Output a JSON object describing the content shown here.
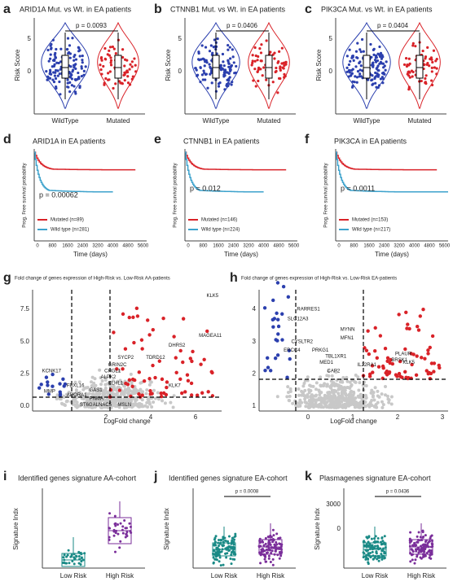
{
  "violins": [
    {
      "label": "a",
      "title": "ARID1A Mut. vs Wt. in EA patients",
      "pvalue": "p = 0.0093"
    },
    {
      "label": "b",
      "title": "CTNNB1 Mut. vs Wt. in EA patients",
      "pvalue": "p = 0.0406"
    },
    {
      "label": "c",
      "title": "PIK3CA Mut. vs Wt. in EA patients",
      "pvalue": "p = 0.0404"
    }
  ],
  "violin_axes": {
    "ylabel": "Risk Score",
    "yticks": [
      "5",
      "0"
    ],
    "groups": [
      "WildType",
      "Mutated"
    ]
  },
  "km": [
    {
      "label": "d",
      "title": "ARID1A in EA patients",
      "pvalue": "p = 0.00062",
      "legend": [
        "Mutated (n=89)",
        "Wild type (n=281)"
      ]
    },
    {
      "label": "e",
      "title": "CTNNB1 in EA patients",
      "pvalue": "p = 0.012",
      "legend": [
        "Mutated (n=146)",
        "Wild type (n=224)"
      ]
    },
    {
      "label": "f",
      "title": "PIK3CA in EA patients",
      "pvalue": "p = 0.0011",
      "legend": [
        "Mutated (n=153)",
        "Wild type (n=217)"
      ]
    }
  ],
  "km_axes": {
    "ylabel": "Prog. Free survival probability",
    "xlabel": "Time (days)",
    "xticks": [
      "0",
      "800",
      "1600",
      "2400",
      "3200",
      "4000",
      "4800",
      "5600"
    ]
  },
  "volcanoes": [
    {
      "label": "g",
      "title": "Fold change of genes expression of High-Risk vs. Low-Risk  AA-patients",
      "yticks": [
        "7.5",
        "5.0",
        "2.5",
        "0.0"
      ],
      "xticks": [
        "2",
        "4",
        "6"
      ],
      "genes": [
        "KLK5",
        "MAGEA11",
        "DHRS2",
        "KCNK17",
        "SYCP2",
        "TDRD12",
        "GRIN2C",
        "CHGL1",
        "ALPK2",
        "KLHL1",
        "FBXL16",
        "GAS1",
        "ADORA1",
        "PNMA",
        "ST6GALNAC5",
        "MSLN",
        "KLK7",
        "MMP"
      ]
    },
    {
      "label": "h",
      "title": "Fold change of genes expression of High-Risk vs. Low-Risk  EA-patients",
      "yticks": [
        "4",
        "3",
        "2",
        "1"
      ],
      "xticks": [
        "0",
        "1",
        "2",
        "3"
      ],
      "genes": [
        "RARRES1",
        "SLC12A3",
        "MYNN",
        "MFN1",
        "CYSLTR2",
        "ERCC4",
        "PRKG1",
        "TBL1XR1",
        "MED1",
        "CAP2",
        "IL22RA1",
        "PLAUR",
        "BRSK1",
        "KLK5"
      ]
    }
  ],
  "volcano_axes": {
    "xlabel": "LogFold change"
  },
  "boxes": [
    {
      "label": "i",
      "title": "Identified genes signature AA-cohort"
    },
    {
      "label": "j",
      "title": "Identified genes signature EA-cohort",
      "pvalue": "p = 0.0008"
    },
    {
      "label": "k",
      "title": "Plasmagenes signature EA-cohort",
      "pvalue": "p = 0.0436",
      "yticks": [
        "3000",
        "0"
      ]
    }
  ],
  "box_axes": {
    "ylabel": "Signature Indx",
    "groups": [
      "Low Risk",
      "High Risk"
    ]
  }
}
